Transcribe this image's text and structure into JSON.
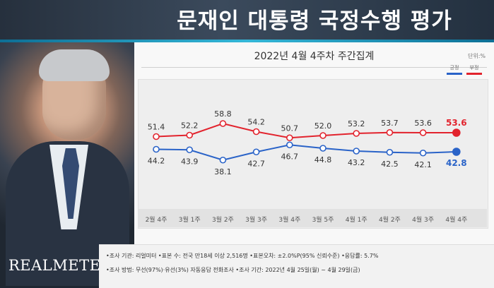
{
  "title": "문재인 대통령 국정수행 평가",
  "subtitle": "2022년 4월 4주차 주간집계",
  "unit": "단위:%",
  "logo": "REALMETER",
  "legend": [
    {
      "label": "긍정",
      "color": "#2a63c8"
    },
    {
      "label": "부정",
      "color": "#e2232d"
    }
  ],
  "chart_data": {
    "type": "line",
    "categories": [
      "2월 4주",
      "3월 1주",
      "3월 2주",
      "3월 3주",
      "3월 4주",
      "3월 5주",
      "4월 1주",
      "4월 2주",
      "4월 3주",
      "4월 4주"
    ],
    "series": [
      {
        "name": "부정",
        "color": "#e2232d",
        "values": [
          51.4,
          52.2,
          58.8,
          54.2,
          50.7,
          52.0,
          53.2,
          53.7,
          53.6,
          53.6
        ]
      },
      {
        "name": "긍정",
        "color": "#2a63c8",
        "values": [
          44.2,
          43.9,
          38.1,
          42.7,
          46.7,
          44.8,
          43.2,
          42.5,
          42.1,
          42.8
        ]
      }
    ],
    "ylim": [
      20,
      80
    ],
    "grid": false
  },
  "footer": {
    "line1": "•조사 기관: 리얼미터 •표본 수: 전국 만18세 이상 2,516명 •표본오차: ±2.0%P(95% 신뢰수준) •응답률: 5.7%",
    "line2": "•조사 방법: 무선(97%)·유선(3%) 자동응답 전화조사 •조사 기간: 2022년 4월 25일(월) ~ 4월 29일(금)"
  }
}
